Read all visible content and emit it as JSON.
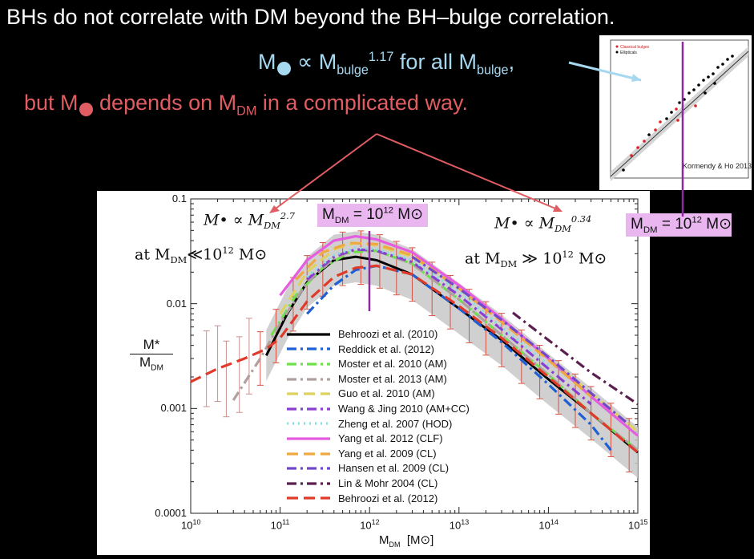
{
  "slide": {
    "title": "BHs do not correlate with DM beyond the BH–bulge correlation.",
    "line1_a": "M",
    "line1_b": " ∝ M",
    "line1_sub": "bulge",
    "line1_sup": "1.17",
    "line1_c": " for all M",
    "line1_sub2": "bulge",
    "line1_d": ",",
    "line2_a": "but M",
    "line2_b": " depends on M",
    "line2_sub": "DM",
    "line2_c": " in a complicated way.",
    "colors": {
      "blue": "#a6d8f0",
      "red": "#e05d63",
      "purple_box": "#e9b6f0",
      "purple_line": "#8c2a9e"
    }
  },
  "inset": {
    "legend": [
      "Classical bulges",
      "Ellipticals"
    ],
    "credit": "Kormendy & Ho 2013"
  },
  "annotations": {
    "box1": "M",
    "box1_sub": "DM",
    "box1_rest": " = 10",
    "box1_sup": "12",
    "box1_unit": " M",
    "box1_sun": "⊙",
    "box2": "M",
    "box2_sub": "DM",
    "box2_rest": " = 10",
    "box2_sup": "12",
    "box2_unit": " M",
    "box2_sun": "⊙",
    "eq_left": "M• ∝ M",
    "eq_left_sub": "DM",
    "eq_left_sup": "2.7",
    "eq_left_cond": "at M",
    "eq_left_cond_sub": "DM",
    "eq_left_cond_rest": "≪10",
    "eq_left_cond_sup": "12",
    "eq_left_cond_unit": " M⊙",
    "eq_right": "M• ∝ M",
    "eq_right_sub": "DM",
    "eq_right_sup": "0.34",
    "eq_right_cond": "at M",
    "eq_right_cond_sub": "DM",
    "eq_right_cond_rest": " ≫ 10",
    "eq_right_cond_sup": "12",
    "eq_right_cond_unit": " M⊙"
  },
  "chart_data": {
    "type": "line",
    "xlabel": "M",
    "xlabel_sub": "DM",
    "xlabel_unit": "[M⊙]",
    "ylabel_num": "M*",
    "ylabel_den": "M",
    "ylabel_den_sub": "DM",
    "x_scale": "log",
    "y_scale": "log",
    "xlim": [
      10000000000.0,
      1000000000000000.0
    ],
    "ylim": [
      0.0001,
      0.1
    ],
    "x_ticks": [
      {
        "base": "10",
        "exp": "10"
      },
      {
        "base": "10",
        "exp": "11"
      },
      {
        "base": "10",
        "exp": "12"
      },
      {
        "base": "10",
        "exp": "13"
      },
      {
        "base": "10",
        "exp": "14"
      },
      {
        "base": "10",
        "exp": "15"
      }
    ],
    "y_ticks": [
      "0.0001",
      "0.001",
      "0.01",
      "0.1"
    ],
    "series": [
      {
        "name": "Behroozi et al. (2010)",
        "color": "#000000",
        "dash": "solid",
        "x": [
          70000000000.0,
          120000000000.0,
          200000000000.0,
          400000000000.0,
          700000000000.0,
          1200000000000.0,
          3000000000000.0,
          10000000000000.0,
          30000000000000.0,
          100000000000000.0,
          300000000000000.0,
          1000000000000000.0
        ],
        "y": [
          0.0032,
          0.008,
          0.016,
          0.026,
          0.028,
          0.026,
          0.019,
          0.009,
          0.0045,
          0.0019,
          0.0009,
          0.00038
        ]
      },
      {
        "name": "Reddick et al. (2012)",
        "color": "#1f5fd6",
        "dash": "dashdot",
        "x": [
          200000000000.0,
          400000000000.0,
          700000000000.0,
          1200000000000.0,
          3000000000000.0,
          10000000000000.0,
          30000000000000.0,
          100000000000000.0,
          300000000000000.0,
          500000000000000.0
        ],
        "y": [
          0.008,
          0.015,
          0.021,
          0.023,
          0.019,
          0.009,
          0.0043,
          0.0017,
          0.0007,
          0.0004
        ]
      },
      {
        "name": "Moster et al. 2010 (AM)",
        "color": "#6ee04a",
        "dash": "dashdot",
        "x": [
          80000000000.0,
          150000000000.0,
          300000000000.0,
          600000000000.0,
          1200000000000.0,
          3000000000000.0,
          10000000000000.0,
          30000000000000.0,
          100000000000000.0,
          300000000000000.0,
          1000000000000000.0
        ],
        "y": [
          0.005,
          0.012,
          0.022,
          0.031,
          0.032,
          0.024,
          0.011,
          0.005,
          0.0021,
          0.0009,
          0.0004
        ]
      },
      {
        "name": "Moster et al. 2013 (AM)",
        "color": "#b0a0a0",
        "dash": "dashdot",
        "x": [
          30000000000.0,
          60000000000.0,
          100000000000.0,
          200000000000.0,
          400000000000.0,
          700000000000.0,
          1200000000000.0,
          3000000000000.0,
          10000000000000.0,
          30000000000000.0,
          100000000000000.0,
          300000000000000.0,
          1000000000000000.0
        ],
        "y": [
          0.0012,
          0.003,
          0.0065,
          0.016,
          0.027,
          0.033,
          0.032,
          0.024,
          0.011,
          0.005,
          0.0021,
          0.0009,
          0.0004
        ]
      },
      {
        "name": "Guo et al. 2010 (AM)",
        "color": "#ddd260",
        "dash": "dashed",
        "x": [
          100000000000.0,
          200000000000.0,
          400000000000.0,
          700000000000.0,
          1200000000000.0,
          3000000000000.0,
          10000000000000.0,
          30000000000000.0,
          100000000000000.0,
          300000000000000.0,
          1000000000000000.0
        ],
        "y": [
          0.008,
          0.02,
          0.033,
          0.038,
          0.036,
          0.028,
          0.014,
          0.0068,
          0.003,
          0.0014,
          0.0006
        ]
      },
      {
        "name": "Wang & Jing 2010 (AM+CC)",
        "color": "#8a3fd0",
        "dash": "dashdot",
        "x": [
          200000000000.0,
          400000000000.0,
          700000000000.0,
          1200000000000.0,
          3000000000000.0,
          10000000000000.0,
          30000000000000.0,
          100000000000000.0,
          300000000000000.0
        ],
        "y": [
          0.017,
          0.028,
          0.033,
          0.032,
          0.025,
          0.012,
          0.0057,
          0.0024,
          0.0011
        ]
      },
      {
        "name": "Zheng et al. 2007 (HOD)",
        "color": "#7fe0e6",
        "dash": "dotted",
        "x": [
          200000000000.0,
          400000000000.0,
          700000000000.0,
          1200000000000.0,
          3000000000000.0,
          10000000000000.0,
          30000000000000.0,
          100000000000000.0
        ],
        "y": [
          0.018,
          0.029,
          0.034,
          0.033,
          0.026,
          0.013,
          0.006,
          0.0026
        ]
      },
      {
        "name": "Yang et al. 2012 (CLF)",
        "color": "#e65ce0",
        "dash": "solid",
        "x": [
          100000000000.0,
          200000000000.0,
          400000000000.0,
          700000000000.0,
          1200000000000.0,
          3000000000000.0,
          10000000000000.0,
          30000000000000.0,
          100000000000000.0,
          300000000000000.0,
          1000000000000000.0
        ],
        "y": [
          0.012,
          0.026,
          0.04,
          0.044,
          0.041,
          0.031,
          0.015,
          0.0072,
          0.003,
          0.0013,
          0.00055
        ]
      },
      {
        "name": "Yang et al. 2009  (CL)",
        "color": "#f0a840",
        "dash": "dashed",
        "x": [
          150000000000.0,
          300000000000.0,
          600000000000.0,
          1200000000000.0,
          3000000000000.0,
          10000000000000.0,
          30000000000000.0,
          100000000000000.0,
          300000000000000.0
        ],
        "y": [
          0.017,
          0.031,
          0.038,
          0.037,
          0.029,
          0.014,
          0.0067,
          0.0029,
          0.0013
        ]
      },
      {
        "name": "Hansen et al. 2009 (CL)",
        "color": "#7048c8",
        "dash": "dashdot",
        "x": [
          3000000000000.0,
          10000000000000.0,
          30000000000000.0,
          100000000000000.0,
          300000000000000.0,
          800000000000000.0
        ],
        "y": [
          0.028,
          0.014,
          0.007,
          0.0031,
          0.0014,
          0.0007
        ]
      },
      {
        "name": "Lin & Mohr 2004 (CL)",
        "color": "#5a1f4f",
        "dash": "dashdot",
        "x": [
          40000000000000.0,
          100000000000000.0,
          300000000000000.0,
          1000000000000000.0
        ],
        "y": [
          0.0082,
          0.0045,
          0.0022,
          0.0011
        ]
      },
      {
        "name": "Behroozi et al. (2012)",
        "color": "#e03a2a",
        "dash": "dashed",
        "x": [
          10000000000.0,
          20000000000.0,
          40000000000.0,
          70000000000.0,
          100000000000.0,
          200000000000.0,
          400000000000.0,
          700000000000.0,
          1200000000000.0,
          3000000000000.0,
          10000000000000.0,
          30000000000000.0,
          100000000000000.0,
          300000000000000.0,
          1000000000000000.0
        ],
        "y": [
          0.0018,
          0.0024,
          0.003,
          0.0037,
          0.0047,
          0.0105,
          0.018,
          0.022,
          0.023,
          0.019,
          0.0095,
          0.0047,
          0.002,
          0.0009,
          0.00038
        ]
      }
    ]
  }
}
